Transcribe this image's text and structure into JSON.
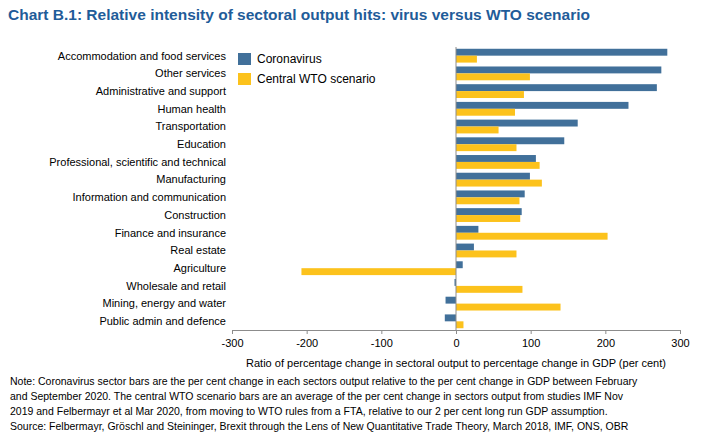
{
  "chart_data": {
    "type": "bar",
    "orientation": "horizontal",
    "title": "Chart B.1: Relative intensity of sectoral output hits: virus versus WTO scenario",
    "x_label": "Ratio of percentage change in sectoral output to percentage change in GDP (per cent)",
    "categories": [
      "Accommodation and food services",
      "Other services",
      "Administrative and support",
      "Human health",
      "Transportation",
      "Education",
      "Professional, scientific and technical",
      "Manufacturing",
      "Information and communication",
      "Construction",
      "Finance and insurance",
      "Real estate",
      "Agriculture",
      "Wholesale and retail",
      "Mining, energy and water",
      "Public admin and defence"
    ],
    "series": [
      {
        "name": "Coronavirus",
        "color": "#41709a",
        "values": [
          283,
          275,
          269,
          231,
          163,
          145,
          107,
          99,
          92,
          88,
          30,
          24,
          9,
          -2,
          -14,
          -15
        ]
      },
      {
        "name": "Central WTO scenario",
        "color": "#fcc21c",
        "values": [
          28,
          99,
          91,
          79,
          57,
          81,
          112,
          115,
          85,
          86,
          203,
          81,
          -207,
          89,
          140,
          10
        ]
      }
    ],
    "xlim": [
      -300,
      300
    ],
    "xticks": [
      -300,
      -200,
      -100,
      0,
      100,
      200,
      300
    ],
    "grid": false,
    "legend": "upper left",
    "notes": [
      "Note: Coronavirus sector bars are the per cent change in each sectors output relative to the per cent change in GDP between February",
      "and September 2020. The central WTO scenario bars are an average of the per cent change in sectors output from studies IMF Nov",
      "2019 and Felbermayr et al Mar 2020, from moving to WTO rules from a FTA, relative to our 2 per cent long run GDP assumption.",
      "Source: Felbermayr, Gröschl and Steininger, Brexit through the Lens of New Quantitative Trade Theory, March 2018, IMF, ONS, OBR"
    ]
  }
}
